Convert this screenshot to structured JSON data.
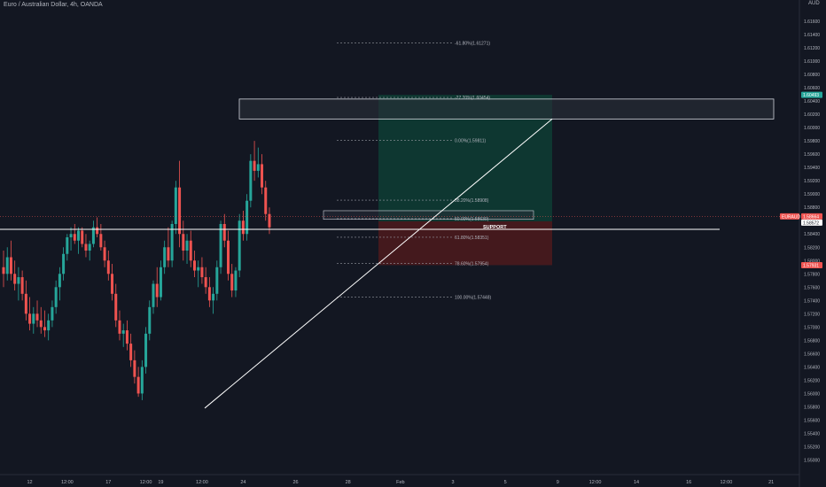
{
  "header": {
    "title": "Euro / Australian Dollar, 4h, OANDA",
    "currency": "AUD"
  },
  "colors": {
    "background": "#131722",
    "grid": "#1e222d",
    "bull": "#26a69a",
    "bear": "#ef5350",
    "text": "#b2b5be",
    "fib": "#9598a1",
    "target_zone": "#0e3d34",
    "stop_zone": "#4a1a1d",
    "support": "#ffffff",
    "trendline": "#ffffff"
  },
  "chart_data": {
    "type": "candlestick",
    "symbol": "EURAUD",
    "timeframe": "4h",
    "ylim": [
      1.5486,
      1.6176
    ],
    "y_ticks": [
      "1.61600",
      "1.61400",
      "1.61200",
      "1.61000",
      "1.60800",
      "1.60600",
      "1.60400",
      "1.60200",
      "1.60000",
      "1.59800",
      "1.59600",
      "1.59400",
      "1.59200",
      "1.59000",
      "1.58800",
      "1.58600",
      "1.58400",
      "1.58200",
      "1.58000",
      "1.57800",
      "1.57600",
      "1.57400",
      "1.57200",
      "1.57000",
      "1.56800",
      "1.56600",
      "1.56400",
      "1.56200",
      "1.56000",
      "1.55800",
      "1.55600",
      "1.55400",
      "1.55200",
      "1.55000"
    ],
    "y_tick_values": [
      1.616,
      1.614,
      1.612,
      1.61,
      1.608,
      1.606,
      1.604,
      1.602,
      1.6,
      1.598,
      1.596,
      1.594,
      1.592,
      1.59,
      1.588,
      1.586,
      1.584,
      1.582,
      1.58,
      1.578,
      1.576,
      1.574,
      1.572,
      1.57,
      1.568,
      1.566,
      1.564,
      1.562,
      1.56,
      1.558,
      1.556,
      1.554,
      1.552,
      1.55
    ],
    "x_ticks": [
      {
        "label": "12",
        "bar": 7
      },
      {
        "label": "12:00",
        "bar": 17
      },
      {
        "label": "17",
        "bar": 28
      },
      {
        "label": "12:00",
        "bar": 38
      },
      {
        "label": "19",
        "bar": 42
      },
      {
        "label": "12:00",
        "bar": 53
      },
      {
        "label": "24",
        "bar": 64
      },
      {
        "label": "26",
        "bar": 78
      },
      {
        "label": "28",
        "bar": 92
      },
      {
        "label": "Feb",
        "bar": 106
      },
      {
        "label": "3",
        "bar": 120
      },
      {
        "label": "5",
        "bar": 134
      },
      {
        "label": "9",
        "bar": 148
      },
      {
        "label": "12:00",
        "bar": 158
      },
      {
        "label": "14",
        "bar": 169
      },
      {
        "label": "16",
        "bar": 183
      },
      {
        "label": "12:00",
        "bar": 193
      },
      {
        "label": "21",
        "bar": 205
      }
    ],
    "candles": [
      [
        1.579,
        1.5815,
        1.576,
        1.578
      ],
      [
        1.578,
        1.582,
        1.577,
        1.5805
      ],
      [
        1.5805,
        1.583,
        1.577,
        1.578
      ],
      [
        1.578,
        1.58,
        1.5755,
        1.5765
      ],
      [
        1.5765,
        1.579,
        1.574,
        1.5775
      ],
      [
        1.5775,
        1.5785,
        1.574,
        1.575
      ],
      [
        1.575,
        1.577,
        1.571,
        1.572
      ],
      [
        1.572,
        1.5745,
        1.5695,
        1.5705
      ],
      [
        1.5705,
        1.573,
        1.569,
        1.572
      ],
      [
        1.572,
        1.574,
        1.57,
        1.571
      ],
      [
        1.571,
        1.573,
        1.569,
        1.57
      ],
      [
        1.57,
        1.5725,
        1.5685,
        1.5695
      ],
      [
        1.5695,
        1.572,
        1.568,
        1.571
      ],
      [
        1.571,
        1.574,
        1.57,
        1.573
      ],
      [
        1.573,
        1.577,
        1.572,
        1.576
      ],
      [
        1.576,
        1.579,
        1.574,
        1.578
      ],
      [
        1.578,
        1.582,
        1.577,
        1.581
      ],
      [
        1.581,
        1.584,
        1.58,
        1.5835
      ],
      [
        1.5835,
        1.585,
        1.5815,
        1.584
      ],
      [
        1.584,
        1.5855,
        1.5825,
        1.583
      ],
      [
        1.583,
        1.585,
        1.581,
        1.5845
      ],
      [
        1.5845,
        1.585,
        1.582,
        1.5825
      ],
      [
        1.5825,
        1.584,
        1.5805,
        1.5815
      ],
      [
        1.5815,
        1.583,
        1.58,
        1.5825
      ],
      [
        1.5825,
        1.586,
        1.582,
        1.585
      ],
      [
        1.585,
        1.5865,
        1.5835,
        1.584
      ],
      [
        1.584,
        1.5855,
        1.5815,
        1.582
      ],
      [
        1.582,
        1.583,
        1.579,
        1.58
      ],
      [
        1.58,
        1.5815,
        1.577,
        1.578
      ],
      [
        1.578,
        1.5795,
        1.574,
        1.575
      ],
      [
        1.575,
        1.5765,
        1.57,
        1.571
      ],
      [
        1.571,
        1.5725,
        1.568,
        1.569
      ],
      [
        1.569,
        1.5705,
        1.567,
        1.5695
      ],
      [
        1.5695,
        1.571,
        1.5665,
        1.5675
      ],
      [
        1.5675,
        1.569,
        1.564,
        1.565
      ],
      [
        1.565,
        1.5665,
        1.5615,
        1.5625
      ],
      [
        1.5625,
        1.564,
        1.5595,
        1.56
      ],
      [
        1.56,
        1.565,
        1.559,
        1.564
      ],
      [
        1.564,
        1.57,
        1.563,
        1.569
      ],
      [
        1.569,
        1.574,
        1.568,
        1.573
      ],
      [
        1.573,
        1.577,
        1.572,
        1.5765
      ],
      [
        1.5765,
        1.579,
        1.573,
        1.5745
      ],
      [
        1.5745,
        1.58,
        1.574,
        1.579
      ],
      [
        1.579,
        1.583,
        1.578,
        1.582
      ],
      [
        1.582,
        1.585,
        1.579,
        1.58
      ],
      [
        1.58,
        1.586,
        1.579,
        1.5855
      ],
      [
        1.5855,
        1.592,
        1.584,
        1.591
      ],
      [
        1.591,
        1.595,
        1.582,
        1.584
      ],
      [
        1.584,
        1.586,
        1.58,
        1.5815
      ],
      [
        1.5815,
        1.584,
        1.5795,
        1.583
      ],
      [
        1.583,
        1.5845,
        1.579,
        1.58
      ],
      [
        1.58,
        1.5815,
        1.5775,
        1.5785
      ],
      [
        1.5785,
        1.58,
        1.576,
        1.579
      ],
      [
        1.579,
        1.5805,
        1.5765,
        1.5775
      ],
      [
        1.5775,
        1.579,
        1.575,
        1.576
      ],
      [
        1.576,
        1.5775,
        1.573,
        1.574
      ],
      [
        1.574,
        1.576,
        1.572,
        1.575
      ],
      [
        1.575,
        1.58,
        1.574,
        1.579
      ],
      [
        1.579,
        1.586,
        1.578,
        1.5855
      ],
      [
        1.5855,
        1.587,
        1.582,
        1.583
      ],
      [
        1.583,
        1.5845,
        1.577,
        1.578
      ],
      [
        1.578,
        1.5795,
        1.5745,
        1.5755
      ],
      [
        1.5755,
        1.579,
        1.5745,
        1.5785
      ],
      [
        1.5785,
        1.587,
        1.5775,
        1.586
      ],
      [
        1.586,
        1.5875,
        1.583,
        1.584
      ],
      [
        1.584,
        1.59,
        1.583,
        1.589
      ],
      [
        1.589,
        1.596,
        1.588,
        1.595
      ],
      [
        1.595,
        1.598,
        1.592,
        1.5935
      ],
      [
        1.5935,
        1.597,
        1.5925,
        1.5945
      ],
      [
        1.5945,
        1.596,
        1.59,
        1.591
      ],
      [
        1.591,
        1.592,
        1.586,
        1.587
      ],
      [
        1.587,
        1.588,
        1.584,
        1.585
      ]
    ],
    "fib_levels": [
      {
        "label": "-61.80%(1.61271)",
        "price": 1.61271
      },
      {
        "label": "-27.20%(1.60454)",
        "price": 1.60454
      },
      {
        "label": "0.00%(1.59811)",
        "price": 1.59811
      },
      {
        "label": "38.20%(1.58908)",
        "price": 1.58908
      },
      {
        "label": "50.00%(1.58630)",
        "price": 1.5863
      },
      {
        "label": "61.80%(1.58351)",
        "price": 1.58351
      },
      {
        "label": "78.60%(1.57954)",
        "price": 1.57954
      },
      {
        "label": "100.00%(1.57448)",
        "price": 1.57448
      }
    ],
    "support": {
      "label": "SUPPORT",
      "price": 1.5847
    },
    "supply_zone": {
      "top": 1.6043,
      "bottom": 1.6013
    },
    "entry_box": {
      "top": 1.5875,
      "bottom": 1.5862
    },
    "long_position": {
      "target": 1.60493,
      "entry": 1.5859,
      "stop": 1.57931
    },
    "trendline": {
      "from_price": 1.5578,
      "to_price": 1.6013
    },
    "price_labels": [
      {
        "text": "1.60493",
        "price": 1.60493,
        "color": "#26a69a"
      },
      {
        "text": "EURAUD",
        "price": 1.58664,
        "color": "#ef5350",
        "side": "left"
      },
      {
        "text": "1.58664",
        "price": 1.58664,
        "color": "#ef5350"
      },
      {
        "text": "1.58572",
        "price": 1.58572,
        "color": "#ffffff",
        "textColor": "#131722"
      },
      {
        "text": "1.57931",
        "price": 1.57931,
        "color": "#ef5350"
      }
    ],
    "grid": false,
    "legend": "none"
  }
}
